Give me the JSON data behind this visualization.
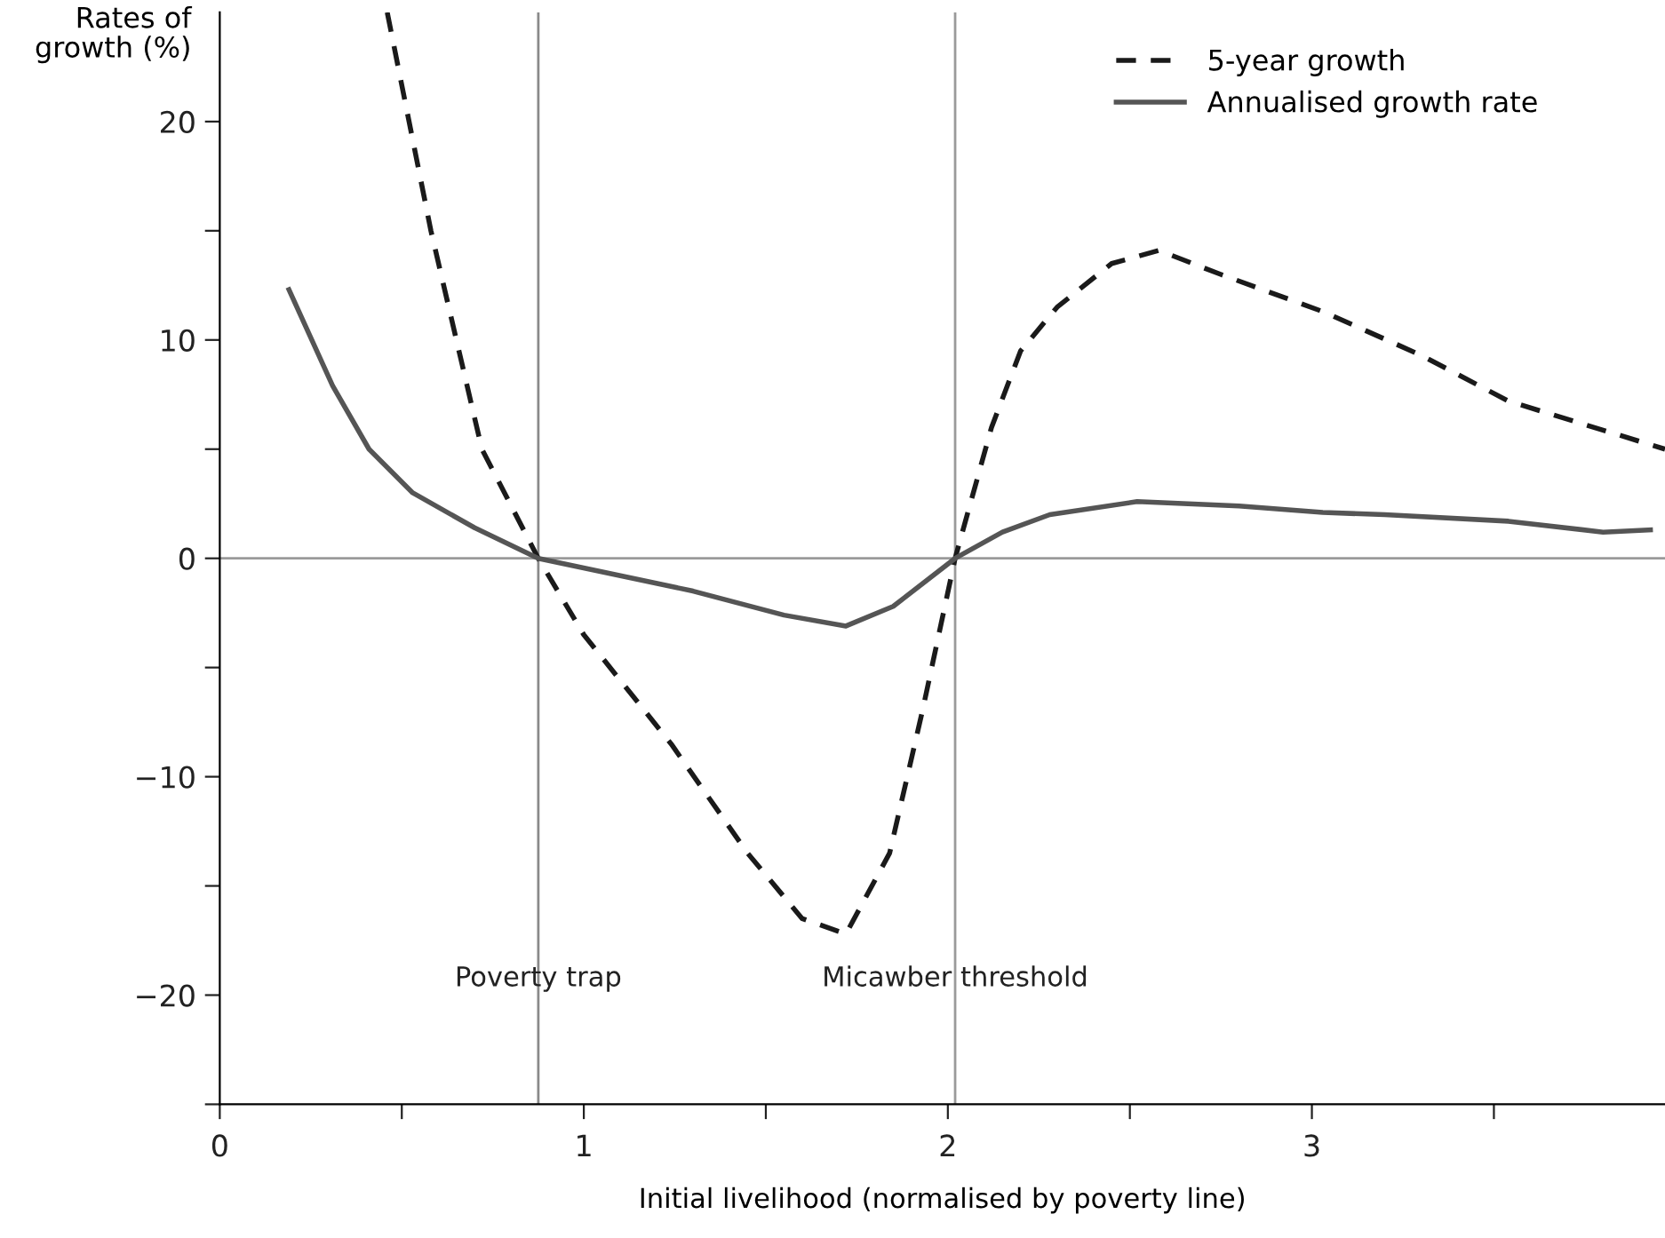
{
  "chart_data": {
    "type": "line",
    "xlabel": "Initial livelihood (normalised by poverty line)",
    "ylabel": "Rates of\ngrowth (%)",
    "xlim": [
      0,
      3.97
    ],
    "ylim": [
      -25,
      25
    ],
    "xticks": [
      0,
      {
        "value": 0.5,
        "label": null
      },
      1,
      {
        "value": 1.5,
        "label": null
      },
      2,
      {
        "value": 2.5,
        "label": null
      },
      3,
      {
        "value": 3.5,
        "label": null
      }
    ],
    "yticks": [
      {
        "value": -25,
        "label": null
      },
      {
        "value": -20,
        "label": "−20"
      },
      {
        "value": -15,
        "label": null
      },
      {
        "value": -10,
        "label": "−10"
      },
      {
        "value": -5,
        "label": null
      },
      0,
      {
        "value": 5,
        "label": null
      },
      10,
      {
        "value": 15,
        "label": null
      },
      20
    ],
    "grid": false,
    "legend": "top right",
    "series": [
      {
        "name": "5-year growth",
        "color": "#1a1a1a",
        "line_style": "dashed",
        "x": [
          0.46,
          0.52,
          0.58,
          0.65,
          0.72,
          0.875,
          1.0,
          1.24,
          1.45,
          1.6,
          1.72,
          1.84,
          1.93,
          2.02,
          2.12,
          2.2,
          2.3,
          2.45,
          2.58,
          2.75,
          3.03,
          3.3,
          3.54,
          3.97
        ],
        "values": [
          25,
          20,
          15,
          10,
          5,
          0,
          -3.5,
          -8.5,
          -13.5,
          -16.5,
          -17.2,
          -13.5,
          -7,
          0,
          6,
          9.5,
          11.5,
          13.5,
          14.1,
          13,
          11.3,
          9.3,
          7.2,
          5.0
        ]
      },
      {
        "name": "Annualised growth rate",
        "color": "#555555",
        "line_style": "solid",
        "x": [
          0.19,
          0.31,
          0.41,
          0.53,
          0.7,
          0.875,
          1.3,
          1.55,
          1.72,
          1.85,
          2.02,
          2.15,
          2.28,
          2.52,
          2.8,
          3.03,
          3.2,
          3.54,
          3.8,
          3.93
        ],
        "values": [
          12.3,
          7.9,
          5,
          3,
          1.4,
          0,
          -1.5,
          -2.6,
          -3.1,
          -2.2,
          0,
          1.2,
          2,
          2.6,
          2.4,
          2.1,
          2.0,
          1.7,
          1.2,
          1.3
        ]
      }
    ],
    "ref_lines": [
      {
        "axis": "y",
        "value": 0,
        "color": "#9a9a9a"
      },
      {
        "axis": "x",
        "value": 0.875,
        "label": "Poverty trap",
        "color": "#8a8a8a"
      },
      {
        "axis": "x",
        "value": 2.02,
        "label": "Micawber threshold",
        "color": "#9a9a9a"
      }
    ]
  }
}
